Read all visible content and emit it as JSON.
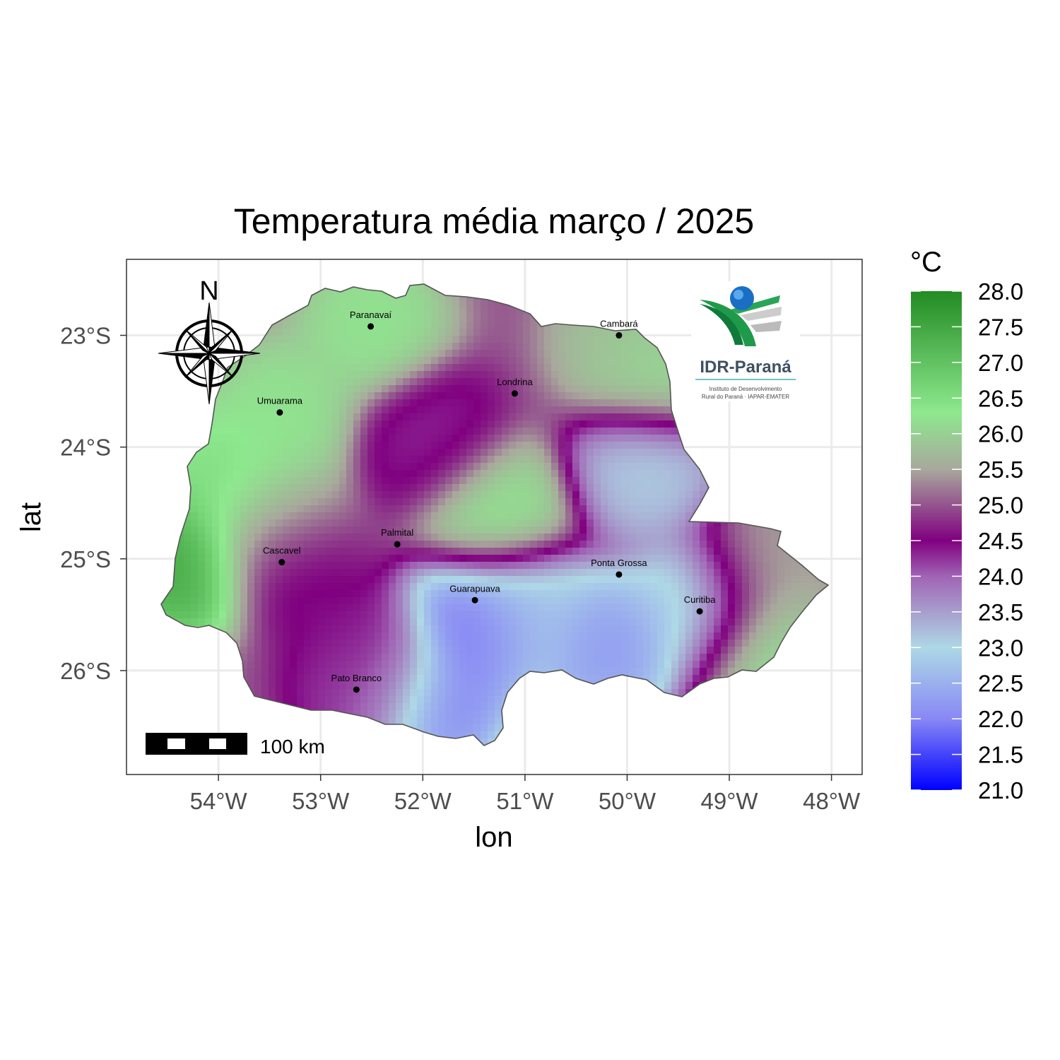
{
  "title": "Temperatura média março / 2025",
  "axes": {
    "x": {
      "label": "lon",
      "range": [
        -54.9,
        -47.7
      ],
      "ticks": [
        {
          "value": -54,
          "label": "54°W"
        },
        {
          "value": -53,
          "label": "53°W"
        },
        {
          "value": -52,
          "label": "52°W"
        },
        {
          "value": -51,
          "label": "51°W"
        },
        {
          "value": -50,
          "label": "50°W"
        },
        {
          "value": -49,
          "label": "49°W"
        },
        {
          "value": -48,
          "label": "48°W"
        }
      ]
    },
    "y": {
      "label": "lat",
      "range": [
        -26.93,
        -22.32
      ],
      "ticks": [
        {
          "value": -23,
          "label": "23°S"
        },
        {
          "value": -24,
          "label": "24°S"
        },
        {
          "value": -25,
          "label": "25°S"
        },
        {
          "value": -26,
          "label": "26°S"
        }
      ]
    },
    "grid": true
  },
  "legend": {
    "title": "°C",
    "min": 21.0,
    "max": 28.0,
    "labels": [
      "28.0",
      "27.5",
      "27.0",
      "26.5",
      "26.0",
      "25.5",
      "25.0",
      "24.5",
      "24.0",
      "23.5",
      "23.0",
      "22.5",
      "22.0",
      "21.5",
      "21.0"
    ],
    "color_stops": [
      {
        "value": 21.0,
        "color": "#0000ff"
      },
      {
        "value": 22.0,
        "color": "#8888f5"
      },
      {
        "value": 23.0,
        "color": "#aed8e6"
      },
      {
        "value": 24.0,
        "color": "#a064b4"
      },
      {
        "value": 24.5,
        "color": "#800080"
      },
      {
        "value": 25.5,
        "color": "#a8a89c"
      },
      {
        "value": 26.3,
        "color": "#8ee88e"
      },
      {
        "value": 28.0,
        "color": "#228b22"
      }
    ]
  },
  "cities": [
    {
      "name": "Paranavaí",
      "lon": -52.51,
      "lat": -22.92
    },
    {
      "name": "Cambará",
      "lon": -50.08,
      "lat": -23.0
    },
    {
      "name": "Londrina",
      "lon": -51.1,
      "lat": -23.52
    },
    {
      "name": "Umuarama",
      "lon": -53.4,
      "lat": -23.69
    },
    {
      "name": "Palmital",
      "lon": -52.25,
      "lat": -24.87
    },
    {
      "name": "Cascavel",
      "lon": -53.38,
      "lat": -25.03
    },
    {
      "name": "Ponta Grossa",
      "lon": -50.08,
      "lat": -25.14
    },
    {
      "name": "Guarapuava",
      "lon": -51.49,
      "lat": -25.37
    },
    {
      "name": "Curitiba",
      "lon": -49.29,
      "lat": -25.47
    },
    {
      "name": "Pato Branco",
      "lon": -52.65,
      "lat": -26.17
    }
  ],
  "scale_bar": {
    "label": "100 km"
  },
  "north_arrow": {
    "label": "N"
  },
  "logo": {
    "name": "IDR-Paraná",
    "subtitle_line1": "Instituto de Desenvolvimento",
    "subtitle_line2": "Rural do Paraná · IAPAR-EMATER"
  },
  "chart_data": {
    "type": "heatmap",
    "title": "Temperatura média março / 2025",
    "xlabel": "lon",
    "ylabel": "lat",
    "xlim": [
      -54.9,
      -47.7
    ],
    "ylim": [
      -26.93,
      -22.32
    ],
    "value_range": [
      21.0,
      28.0
    ],
    "unit": "°C",
    "base_value": 25.0,
    "field_points": [
      {
        "lon": -52.5,
        "lat": -22.9,
        "value": 26.3
      },
      {
        "lon": -53.4,
        "lat": -23.7,
        "value": 26.3
      },
      {
        "lon": -54.3,
        "lat": -25.0,
        "value": 27.6
      },
      {
        "lon": -53.9,
        "lat": -24.3,
        "value": 26.6
      },
      {
        "lon": -53.5,
        "lat": -24.6,
        "value": 26.0
      },
      {
        "lon": -49.7,
        "lat": -23.3,
        "value": 26.2
      },
      {
        "lon": -50.0,
        "lat": -23.0,
        "value": 25.8
      },
      {
        "lon": -51.3,
        "lat": -24.6,
        "value": 26.3
      },
      {
        "lon": -53.4,
        "lat": -24.95,
        "value": 24.2
      },
      {
        "lon": -51.9,
        "lat": -23.95,
        "value": 24.3
      },
      {
        "lon": -49.8,
        "lat": -24.2,
        "value": 23.0
      },
      {
        "lon": -51.5,
        "lat": -25.6,
        "value": 21.6
      },
      {
        "lon": -51.0,
        "lat": -25.5,
        "value": 22.7
      },
      {
        "lon": -50.2,
        "lat": -25.8,
        "value": 22.1
      },
      {
        "lon": -51.9,
        "lat": -26.3,
        "value": 21.8
      },
      {
        "lon": -49.3,
        "lat": -25.45,
        "value": 22.6
      },
      {
        "lon": -48.7,
        "lat": -25.15,
        "value": 25.5
      },
      {
        "lon": -48.7,
        "lat": -25.8,
        "value": 26.3
      },
      {
        "lon": -52.5,
        "lat": -25.9,
        "value": 24.4
      },
      {
        "lon": -52.5,
        "lat": -26.2,
        "value": 24.1
      }
    ]
  }
}
